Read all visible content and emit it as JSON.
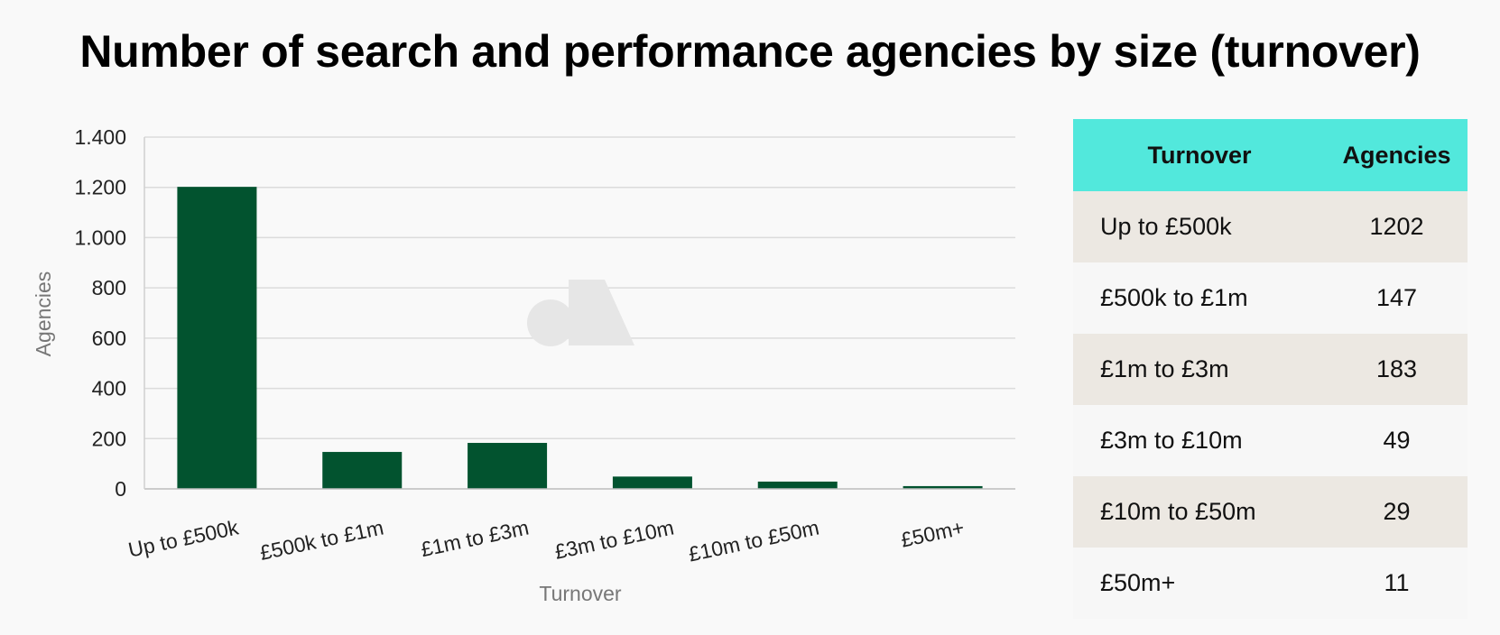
{
  "title": "Number of search and performance agencies by size (turnover)",
  "chart_data": {
    "type": "bar",
    "categories": [
      "Up to £500k",
      "£500k to £1m",
      "£1m to £3m",
      "£3m to £10m",
      "£10m to £50m",
      "£50m+"
    ],
    "values": [
      1202,
      147,
      183,
      49,
      29,
      11
    ],
    "xlabel": "Turnover",
    "ylabel": "Agencies",
    "ylim": [
      0,
      1400
    ],
    "yticks": [
      0,
      200,
      400,
      600,
      800,
      1000,
      1200,
      1400
    ],
    "ytick_labels": [
      "0",
      "200",
      "400",
      "600",
      "800",
      "1.000",
      "1.200",
      "1.400"
    ],
    "grid": true,
    "bar_color": "#02532f"
  },
  "table": {
    "headers": [
      "Turnover",
      "Agencies"
    ],
    "rows": [
      {
        "turnover": "Up to £500k",
        "agencies": "1202"
      },
      {
        "turnover": "£500k to £1m",
        "agencies": "147"
      },
      {
        "turnover": "£1m to £3m",
        "agencies": "183"
      },
      {
        "turnover": "£3m to £10m",
        "agencies": "49"
      },
      {
        "turnover": "£10m to £50m",
        "agencies": "29"
      },
      {
        "turnover": "£50m+",
        "agencies": "11"
      }
    ]
  }
}
